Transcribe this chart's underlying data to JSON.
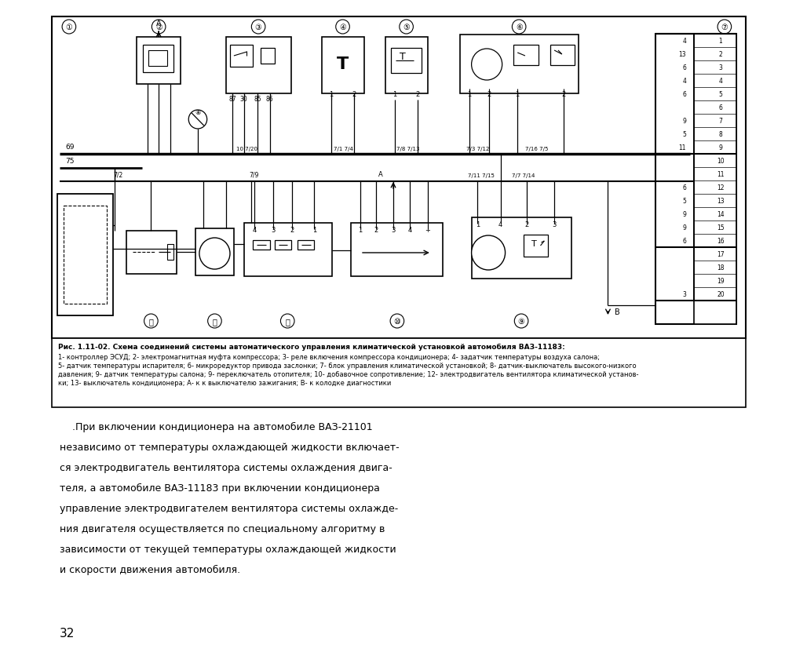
{
  "bg_color": "#ffffff",
  "page_number": "32",
  "caption_bold": "Рис. 1.11-02. Схема соединений системы автоматического управления климатической установкой автомобиля ВАЗ-11183:",
  "caption_line1": "1- контроллер ЭСУД; 2- электромагнитная муфта компрессора; 3- реле включения компрессора кондиционера; 4- задатчик температуры воздуха салона;",
  "caption_line2": "5- датчик температуры испарителя; 6- микроредуктор привода заслонки; 7- блок управления климатической установкой; 8- датчик-выключатель высокого-низкого",
  "caption_line3": "давления; 9- датчик температуры салона; 9- переключатель отопителя; 10- добавочное сопротивление; 12- электродвигатель вентилятора климатической установ-",
  "caption_line4": "ки; 13- выключатель кондиционера; А- к к выключателю зажигания; В- к колодке диагностики",
  "body_line1": "    .При включении кондиционера на автомобиле ВАЗ-21101",
  "body_line2": "независимо от температуры охлаждающей жидкости включает-",
  "body_line3": "ся электродвигатель вентилятора системы охлаждения двига-",
  "body_line4": "теля, а автомобиле ВАЗ-11183 при включении кондиционера",
  "body_line5": "управление электродвигателем вентилятора системы охлажде-",
  "body_line6": "ния двигателя осуществляется по специальному алгоритму в",
  "body_line7": "зависимости от текущей температуры охлаждающей жидкости",
  "body_line8": "и скорости движения автомобиля."
}
